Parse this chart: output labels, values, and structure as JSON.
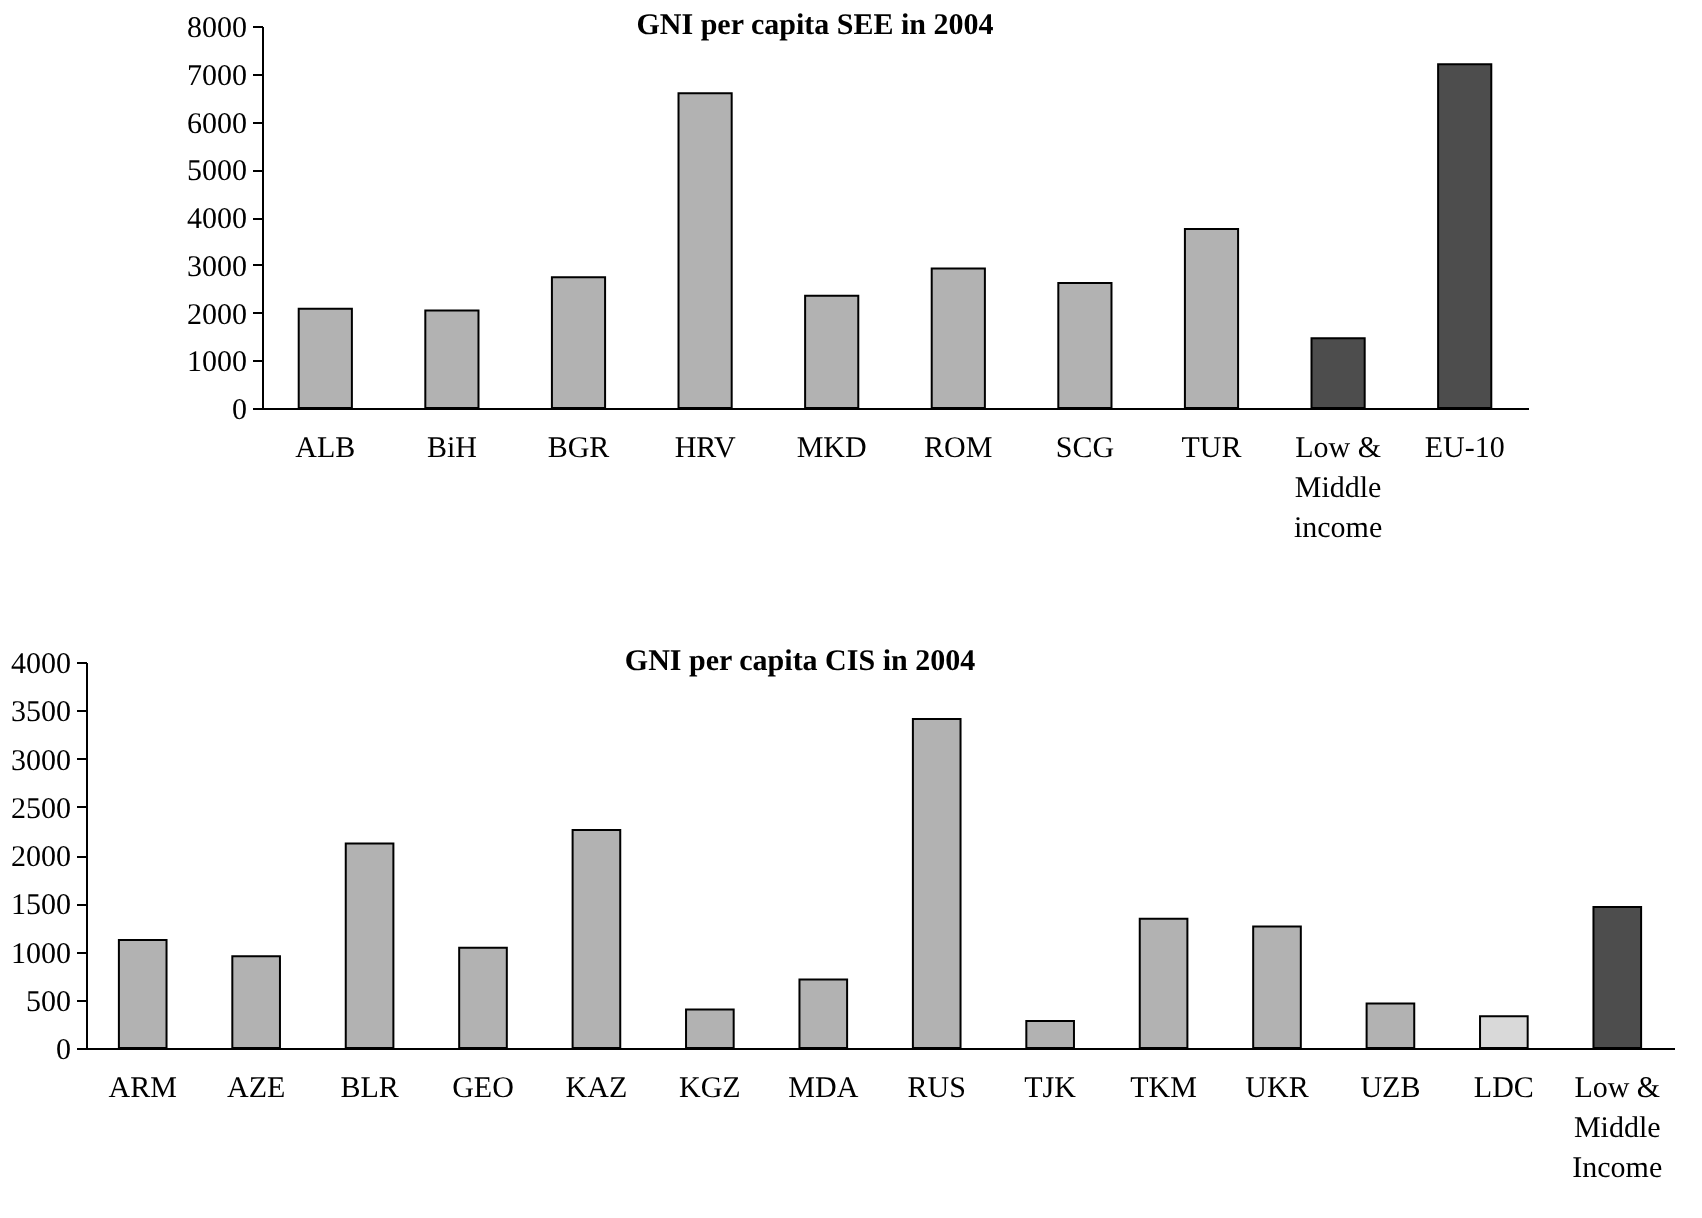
{
  "chart_data": [
    {
      "type": "bar",
      "title": "GNI per capita SEE in 2004",
      "categories": [
        "ALB",
        "BiH",
        "BGR",
        "HRV",
        "MKD",
        "ROM",
        "SCG",
        "TUR",
        "Low & Middle income",
        "EU-10"
      ],
      "values": [
        2080,
        2040,
        2740,
        6590,
        2350,
        2920,
        2620,
        3750,
        1460,
        7200
      ],
      "colors": [
        "#b2b2b2",
        "#b2b2b2",
        "#b2b2b2",
        "#b2b2b2",
        "#b2b2b2",
        "#b2b2b2",
        "#b2b2b2",
        "#b2b2b2",
        "#4d4d4d",
        "#4d4d4d"
      ],
      "ylim": [
        0,
        8000
      ],
      "yticks": [
        0,
        1000,
        2000,
        3000,
        4000,
        5000,
        6000,
        7000,
        8000
      ],
      "grid": false
    },
    {
      "type": "bar",
      "title": "GNI per capita CIS in 2004",
      "categories": [
        "ARM",
        "AZE",
        "BLR",
        "GEO",
        "KAZ",
        "KGZ",
        "MDA",
        "RUS",
        "TJK",
        "TKM",
        "UKR",
        "UZB",
        "LDC",
        "Low & Middle Income"
      ],
      "values": [
        1120,
        950,
        2120,
        1040,
        2260,
        400,
        710,
        3410,
        280,
        1340,
        1260,
        460,
        330,
        1460
      ],
      "colors": [
        "#b2b2b2",
        "#b2b2b2",
        "#b2b2b2",
        "#b2b2b2",
        "#b2b2b2",
        "#b2b2b2",
        "#b2b2b2",
        "#b2b2b2",
        "#b2b2b2",
        "#b2b2b2",
        "#b2b2b2",
        "#b2b2b2",
        "#d9d9d9",
        "#4d4d4d"
      ],
      "ylim": [
        0,
        4000
      ],
      "yticks": [
        0,
        500,
        1000,
        1500,
        2000,
        2500,
        3000,
        3500,
        4000
      ],
      "grid": false
    }
  ]
}
